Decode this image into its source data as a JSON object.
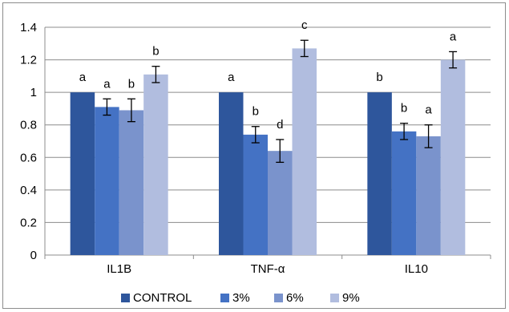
{
  "chart_data": {
    "type": "bar",
    "title": "",
    "xlabel": "",
    "ylabel": "",
    "ylim": [
      0,
      1.4
    ],
    "yticks": [
      "0",
      "0.2",
      "0.4",
      "0.6",
      "0.8",
      "1",
      "1.2",
      "1.4"
    ],
    "categories": [
      "IL1B",
      "TNF-α",
      "IL10"
    ],
    "grid": true,
    "legend_position": "bottom",
    "series": [
      {
        "name": "CONTROL",
        "color": "#2e569c",
        "values": [
          1.0,
          1.0,
          1.0
        ],
        "errors": [
          0,
          0,
          0
        ],
        "labels": [
          "a",
          "a",
          "b"
        ]
      },
      {
        "name": "3%",
        "color": "#4472c4",
        "values": [
          0.91,
          0.74,
          0.76
        ],
        "errors": [
          0.05,
          0.05,
          0.05
        ],
        "labels": [
          "a",
          "b",
          "b"
        ]
      },
      {
        "name": "6%",
        "color": "#7a93cc",
        "values": [
          0.89,
          0.64,
          0.73
        ],
        "errors": [
          0.07,
          0.07,
          0.07
        ],
        "labels": [
          "b",
          "d",
          "a"
        ]
      },
      {
        "name": "9%",
        "color": "#b1bddf",
        "values": [
          1.11,
          1.27,
          1.2
        ],
        "errors": [
          0.05,
          0.05,
          0.05
        ],
        "labels": [
          "b",
          "c",
          "a"
        ]
      }
    ]
  }
}
